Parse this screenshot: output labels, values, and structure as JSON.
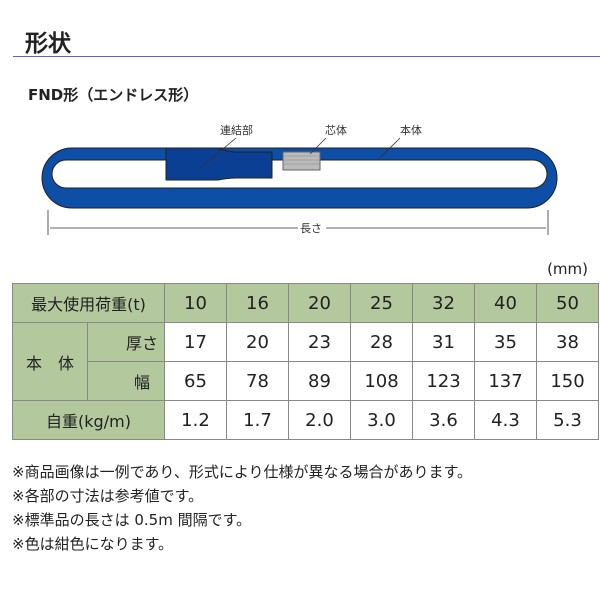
{
  "title": "形状",
  "subtitle": "FND形（エンドレス形）",
  "diagram": {
    "labels": {
      "connector": "連結部",
      "core": "芯体",
      "body": "本体",
      "length": "長さ"
    },
    "colors": {
      "body": "#0d4ea6",
      "connector": "#0a3f94",
      "core": "#bbbbbb"
    }
  },
  "unit": "(mm)",
  "table": {
    "header_label": "最大使用荷重(t)",
    "capacities": [
      "10",
      "16",
      "20",
      "25",
      "32",
      "40",
      "50"
    ],
    "body_label": "本　体",
    "thickness_label": "厚さ",
    "thickness": [
      "17",
      "20",
      "23",
      "28",
      "31",
      "35",
      "38"
    ],
    "width_label": "幅",
    "width": [
      "65",
      "78",
      "89",
      "108",
      "123",
      "137",
      "150"
    ],
    "weight_label": "自重(kg/m)",
    "weight": [
      "1.2",
      "1.7",
      "2.0",
      "3.0",
      "3.6",
      "4.3",
      "5.3"
    ],
    "header_color": "#b3c89d"
  },
  "notes": [
    "※商品画像は一例であり、形式により仕様が異なる場合があります。",
    "※各部の寸法は参考値です。",
    "※標準品の長さは 0.5m 間隔です。",
    "※色は紺色になります。"
  ]
}
